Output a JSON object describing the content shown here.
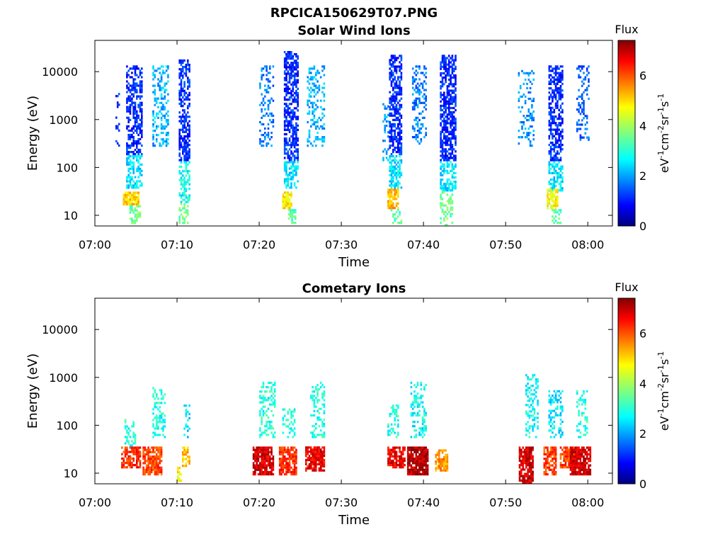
{
  "figure_title": "RPCICA150629T07.PNG",
  "colors": {
    "background": "#ffffff",
    "axes": "#000000"
  },
  "chart_data": [
    {
      "type": "heatmap",
      "title": "Solar Wind Ions",
      "xlabel": "Time",
      "ylabel": "Energy (eV)",
      "yscale": "log",
      "x_ticks": [
        "07:00",
        "07:10",
        "07:20",
        "07:30",
        "07:40",
        "07:50",
        "08:00"
      ],
      "y_ticks": [
        "10",
        "100",
        "1000",
        "10000"
      ],
      "xlim_minutes": [
        0,
        63
      ],
      "ylim_eV": [
        6,
        45000
      ],
      "colorbar": {
        "title": "Flux",
        "unit": "eV-1cm-2sr-1s-1",
        "ticks": [
          "0",
          "2",
          "4",
          "6"
        ],
        "range": [
          0,
          7.4
        ],
        "colormap": "jet"
      },
      "grid": false,
      "bursts": [
        {
          "time_start": "07:02.5",
          "time_end": "07:03.0",
          "e_min": 200,
          "e_max": 4000,
          "flux": 1.2,
          "density": 0.25
        },
        {
          "time_start": "07:03.8",
          "time_end": "07:05.8",
          "e_min": 200,
          "e_max": 15000,
          "flux": 1.2,
          "density": 0.55
        },
        {
          "time_start": "07:03.8",
          "time_end": "07:05.8",
          "e_min": 40,
          "e_max": 200,
          "flux": 2.6,
          "density": 0.55
        },
        {
          "time_start": "07:03.4",
          "time_end": "07:05.4",
          "e_min": 18,
          "e_max": 35,
          "flux": 5.0,
          "density": 0.9
        },
        {
          "time_start": "07:04.2",
          "time_end": "07:05.6",
          "e_min": 6,
          "e_max": 18,
          "flux": 3.6,
          "density": 0.6
        },
        {
          "time_start": "07:07.0",
          "time_end": "07:09.0",
          "e_min": 300,
          "e_max": 15000,
          "flux": 2.2,
          "density": 0.35
        },
        {
          "time_start": "07:10.2",
          "time_end": "07:11.6",
          "e_min": 150,
          "e_max": 20000,
          "flux": 1.2,
          "density": 0.6
        },
        {
          "time_start": "07:10.2",
          "time_end": "07:11.6",
          "e_min": 20,
          "e_max": 150,
          "flux": 2.8,
          "density": 0.55
        },
        {
          "time_start": "07:10.2",
          "time_end": "07:11.4",
          "e_min": 6,
          "e_max": 20,
          "flux": 3.6,
          "density": 0.55
        },
        {
          "time_start": "07:20.0",
          "time_end": "07:21.8",
          "e_min": 300,
          "e_max": 15000,
          "flux": 1.8,
          "density": 0.3
        },
        {
          "time_start": "07:23.0",
          "time_end": "07:24.8",
          "e_min": 150,
          "e_max": 30000,
          "flux": 1.2,
          "density": 0.65
        },
        {
          "time_start": "07:23.0",
          "time_end": "07:24.8",
          "e_min": 40,
          "e_max": 150,
          "flux": 2.6,
          "density": 0.55
        },
        {
          "time_start": "07:22.8",
          "time_end": "07:24.0",
          "e_min": 15,
          "e_max": 35,
          "flux": 4.8,
          "density": 0.85
        },
        {
          "time_start": "07:23.5",
          "time_end": "07:24.5",
          "e_min": 6,
          "e_max": 15,
          "flux": 3.4,
          "density": 0.5
        },
        {
          "time_start": "07:25.8",
          "time_end": "07:28.0",
          "e_min": 300,
          "e_max": 15000,
          "flux": 2.2,
          "density": 0.3
        },
        {
          "time_start": "07:35.0",
          "time_end": "07:35.8",
          "e_min": 150,
          "e_max": 3000,
          "flux": 2.0,
          "density": 0.25
        },
        {
          "time_start": "07:35.8",
          "time_end": "07:37.4",
          "e_min": 200,
          "e_max": 25000,
          "flux": 1.2,
          "density": 0.65
        },
        {
          "time_start": "07:35.8",
          "time_end": "07:37.4",
          "e_min": 40,
          "e_max": 200,
          "flux": 2.6,
          "density": 0.55
        },
        {
          "time_start": "07:35.6",
          "time_end": "07:37.0",
          "e_min": 15,
          "e_max": 40,
          "flux": 5.2,
          "density": 0.85
        },
        {
          "time_start": "07:36.0",
          "time_end": "07:37.4",
          "e_min": 6,
          "e_max": 15,
          "flux": 3.4,
          "density": 0.5
        },
        {
          "time_start": "07:38.6",
          "time_end": "07:40.4",
          "e_min": 300,
          "e_max": 15000,
          "flux": 1.8,
          "density": 0.3
        },
        {
          "time_start": "07:42.0",
          "time_end": "07:44.0",
          "e_min": 150,
          "e_max": 25000,
          "flux": 1.2,
          "density": 0.65
        },
        {
          "time_start": "07:42.0",
          "time_end": "07:44.0",
          "e_min": 35,
          "e_max": 150,
          "flux": 2.6,
          "density": 0.55
        },
        {
          "time_start": "07:42.0",
          "time_end": "07:43.6",
          "e_min": 6,
          "e_max": 35,
          "flux": 3.6,
          "density": 0.45
        },
        {
          "time_start": "07:51.5",
          "time_end": "07:53.5",
          "e_min": 300,
          "e_max": 12000,
          "flux": 2.0,
          "density": 0.25
        },
        {
          "time_start": "07:55.2",
          "time_end": "07:57.0",
          "e_min": 150,
          "e_max": 15000,
          "flux": 1.2,
          "density": 0.6
        },
        {
          "time_start": "07:55.2",
          "time_end": "07:57.0",
          "e_min": 35,
          "e_max": 150,
          "flux": 2.6,
          "density": 0.55
        },
        {
          "time_start": "07:55.0",
          "time_end": "07:56.4",
          "e_min": 15,
          "e_max": 40,
          "flux": 4.6,
          "density": 0.8
        },
        {
          "time_start": "07:55.6",
          "time_end": "07:56.8",
          "e_min": 6,
          "e_max": 15,
          "flux": 3.4,
          "density": 0.5
        },
        {
          "time_start": "07:58.6",
          "time_end": "08:00.2",
          "e_min": 400,
          "e_max": 15000,
          "flux": 1.6,
          "density": 0.3
        }
      ]
    },
    {
      "type": "heatmap",
      "title": "Cometary Ions",
      "xlabel": "Time",
      "ylabel": "Energy (eV)",
      "yscale": "log",
      "x_ticks": [
        "07:00",
        "07:10",
        "07:20",
        "07:30",
        "07:40",
        "07:50",
        "08:00"
      ],
      "y_ticks": [
        "10",
        "100",
        "1000",
        "10000"
      ],
      "xlim_minutes": [
        0,
        63
      ],
      "ylim_eV": [
        6,
        45000
      ],
      "colorbar": {
        "title": "Flux",
        "unit": "eV-1cm-2sr-1s-1",
        "ticks": [
          "0",
          "2",
          "4",
          "6"
        ],
        "range": [
          0,
          7.4
        ],
        "colormap": "jet"
      },
      "grid": false,
      "bursts": [
        {
          "time_start": "07:03.2",
          "time_end": "07:05.6",
          "e_min": 14,
          "e_max": 40,
          "flux": 6.2,
          "density": 0.8
        },
        {
          "time_start": "07:03.6",
          "time_end": "07:05.0",
          "e_min": 40,
          "e_max": 150,
          "flux": 3.0,
          "density": 0.35
        },
        {
          "time_start": "07:05.8",
          "time_end": "07:08.2",
          "e_min": 10,
          "e_max": 40,
          "flux": 6.0,
          "density": 0.8
        },
        {
          "time_start": "07:07.0",
          "time_end": "07:08.6",
          "e_min": 60,
          "e_max": 700,
          "flux": 3.0,
          "density": 0.35
        },
        {
          "time_start": "07:10.0",
          "time_end": "07:10.6",
          "e_min": 6,
          "e_max": 15,
          "flux": 4.8,
          "density": 0.7
        },
        {
          "time_start": "07:10.6",
          "time_end": "07:11.6",
          "e_min": 15,
          "e_max": 40,
          "flux": 5.0,
          "density": 0.6
        },
        {
          "time_start": "07:10.8",
          "time_end": "07:11.6",
          "e_min": 60,
          "e_max": 300,
          "flux": 2.6,
          "density": 0.3
        },
        {
          "time_start": "07:19.2",
          "time_end": "07:21.8",
          "e_min": 10,
          "e_max": 40,
          "flux": 6.8,
          "density": 0.85
        },
        {
          "time_start": "07:20.0",
          "time_end": "07:22.0",
          "e_min": 60,
          "e_max": 900,
          "flux": 3.0,
          "density": 0.35
        },
        {
          "time_start": "07:22.4",
          "time_end": "07:24.6",
          "e_min": 10,
          "e_max": 40,
          "flux": 6.2,
          "density": 0.8
        },
        {
          "time_start": "07:22.8",
          "time_end": "07:24.4",
          "e_min": 60,
          "e_max": 250,
          "flux": 3.0,
          "density": 0.3
        },
        {
          "time_start": "07:25.6",
          "time_end": "07:28.0",
          "e_min": 12,
          "e_max": 40,
          "flux": 6.6,
          "density": 0.85
        },
        {
          "time_start": "07:26.2",
          "time_end": "07:28.0",
          "e_min": 60,
          "e_max": 900,
          "flux": 3.0,
          "density": 0.35
        },
        {
          "time_start": "07:35.6",
          "time_end": "07:37.8",
          "e_min": 14,
          "e_max": 40,
          "flux": 6.6,
          "density": 0.85
        },
        {
          "time_start": "07:35.6",
          "time_end": "07:37.0",
          "e_min": 60,
          "e_max": 300,
          "flux": 3.0,
          "density": 0.35
        },
        {
          "time_start": "07:38.0",
          "time_end": "07:40.6",
          "e_min": 10,
          "e_max": 40,
          "flux": 7.0,
          "density": 0.9
        },
        {
          "time_start": "07:38.4",
          "time_end": "07:40.4",
          "e_min": 60,
          "e_max": 900,
          "flux": 2.8,
          "density": 0.35
        },
        {
          "time_start": "07:41.4",
          "time_end": "07:43.0",
          "e_min": 12,
          "e_max": 35,
          "flux": 5.4,
          "density": 0.7
        },
        {
          "time_start": "07:51.6",
          "time_end": "07:53.4",
          "e_min": 6,
          "e_max": 40,
          "flux": 6.8,
          "density": 0.85
        },
        {
          "time_start": "07:52.4",
          "time_end": "07:54.0",
          "e_min": 60,
          "e_max": 1300,
          "flux": 2.8,
          "density": 0.35
        },
        {
          "time_start": "07:54.6",
          "time_end": "07:56.2",
          "e_min": 10,
          "e_max": 40,
          "flux": 6.0,
          "density": 0.8
        },
        {
          "time_start": "07:55.2",
          "time_end": "07:57.0",
          "e_min": 60,
          "e_max": 600,
          "flux": 2.6,
          "density": 0.35
        },
        {
          "time_start": "07:56.6",
          "time_end": "07:58.6",
          "e_min": 14,
          "e_max": 40,
          "flux": 6.0,
          "density": 0.8
        },
        {
          "time_start": "07:57.8",
          "time_end": "08:00.4",
          "e_min": 10,
          "e_max": 40,
          "flux": 6.8,
          "density": 0.85
        },
        {
          "time_start": "07:58.6",
          "time_end": "08:00.0",
          "e_min": 60,
          "e_max": 600,
          "flux": 3.0,
          "density": 0.35
        }
      ]
    }
  ]
}
